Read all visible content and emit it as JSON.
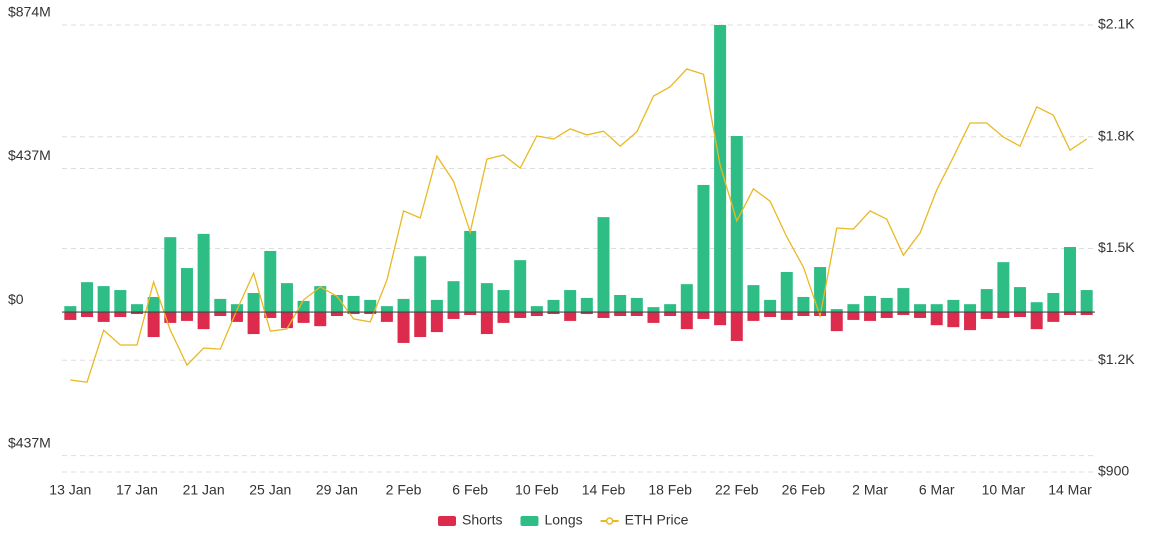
{
  "chart_data": {
    "type": "bar",
    "categories": [
      "13 Jan",
      null,
      null,
      null,
      "17 Jan",
      null,
      null,
      null,
      "21 Jan",
      null,
      null,
      null,
      "25 Jan",
      null,
      null,
      null,
      "29 Jan",
      null,
      null,
      null,
      "2 Feb",
      null,
      null,
      null,
      "6 Feb",
      null,
      null,
      null,
      "10 Feb",
      null,
      null,
      null,
      "14 Feb",
      null,
      null,
      null,
      "18 Feb",
      null,
      null,
      null,
      "22 Feb",
      null,
      null,
      null,
      "26 Feb",
      null,
      null,
      null,
      "2 Mar",
      null,
      null,
      null,
      "6 Mar",
      null,
      null,
      null,
      "10 Mar",
      null,
      null,
      null,
      "14 Mar",
      null
    ],
    "series": [
      {
        "name": "Shorts",
        "color": "#dc2b4c",
        "axis": "y",
        "values": [
          -24,
          -15,
          -30,
          -15,
          -6,
          -76,
          -33,
          -27,
          -52,
          -12,
          -30,
          -67,
          -18,
          -49,
          -33,
          -43,
          -12,
          -6,
          -6,
          -30,
          -94,
          -76,
          -61,
          -21,
          -9,
          -67,
          -33,
          -18,
          -12,
          -6,
          -27,
          -6,
          -18,
          -12,
          -12,
          -33,
          -12,
          -52,
          -21,
          -40,
          -88,
          -27,
          -15,
          -24,
          -12,
          -12,
          -58,
          -24,
          -27,
          -18,
          -9,
          -18,
          -40,
          -46,
          -55,
          -21,
          -18,
          -15,
          -52,
          -30,
          -9,
          -9
        ]
      },
      {
        "name": "Longs",
        "color": "#2ebd85",
        "axis": "y",
        "values": [
          18,
          91,
          79,
          67,
          24,
          46,
          228,
          134,
          238,
          40,
          24,
          58,
          186,
          88,
          34,
          79,
          52,
          49,
          37,
          18,
          40,
          170,
          37,
          94,
          247,
          88,
          67,
          158,
          18,
          37,
          67,
          43,
          289,
          52,
          43,
          15,
          24,
          85,
          387,
          874,
          536,
          82,
          37,
          122,
          46,
          137,
          9,
          24,
          49,
          43,
          73,
          24,
          24,
          37,
          24,
          70,
          152,
          76,
          30,
          58,
          198,
          67
        ]
      },
      {
        "name": "ETH Price",
        "color": "#e8b923",
        "axis": "y2",
        "type": "line",
        "values": [
          1147,
          1141,
          1281,
          1241,
          1241,
          1410,
          1281,
          1187,
          1233,
          1230,
          1335,
          1434,
          1278,
          1284,
          1362,
          1397,
          1372,
          1311,
          1303,
          1415,
          1601,
          1582,
          1748,
          1681,
          1544,
          1740,
          1751,
          1716,
          1802,
          1794,
          1821,
          1805,
          1815,
          1775,
          1813,
          1909,
          1934,
          1982,
          1968,
          1724,
          1574,
          1660,
          1627,
          1531,
          1450,
          1319,
          1555,
          1552,
          1601,
          1579,
          1482,
          1542,
          1657,
          1746,
          1837,
          1837,
          1799,
          1775,
          1880,
          1858,
          1764,
          1794
        ]
      }
    ],
    "ylim": [
      -487,
      874
    ],
    "yticks": [
      {
        "value": 874,
        "label": "$874M"
      },
      {
        "value": 437,
        "label": "$437M"
      },
      {
        "value": 0,
        "label": "$0"
      },
      {
        "value": -437,
        "label": "$437M"
      }
    ],
    "y2lim": [
      900,
      2100
    ],
    "y2ticks": [
      {
        "value": 2100,
        "label": "$2.1K"
      },
      {
        "value": 1800,
        "label": "$1.8K"
      },
      {
        "value": 1500,
        "label": "$1.5K"
      },
      {
        "value": 1200,
        "label": "$1.2K"
      },
      {
        "value": 900,
        "label": "$900"
      }
    ],
    "grid": true,
    "legend": "bottom"
  }
}
